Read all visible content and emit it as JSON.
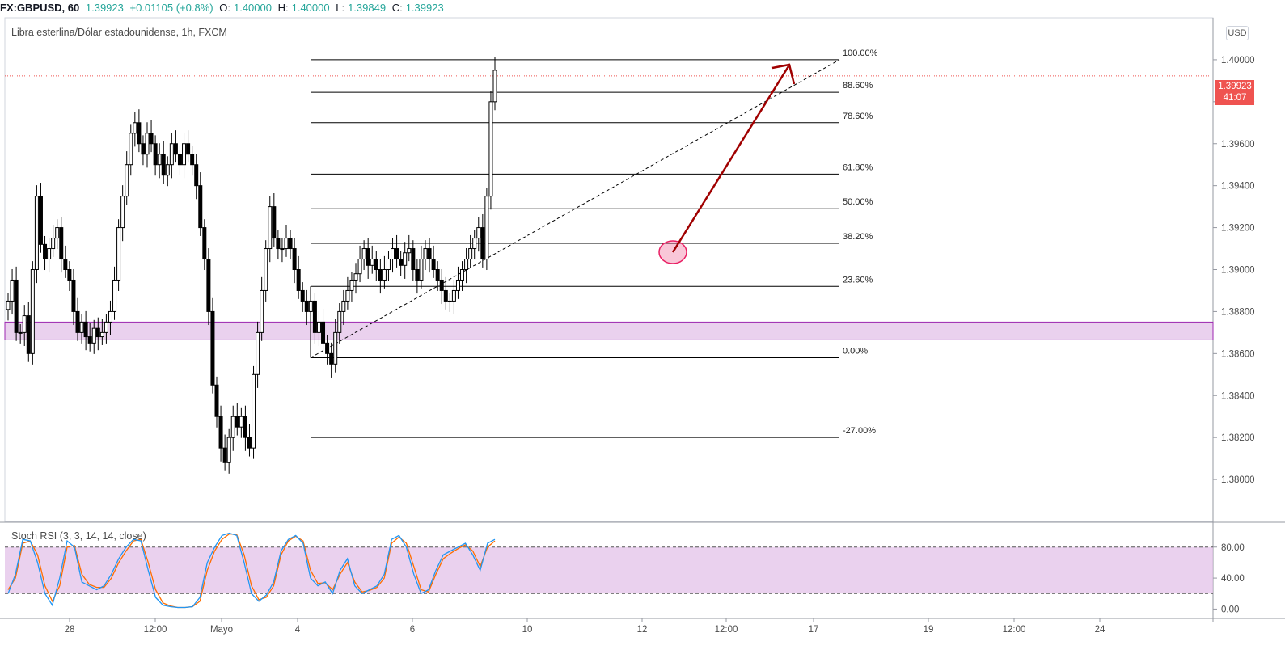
{
  "header": {
    "symbol": "FX:GBPUSD, 60",
    "last": "1.39923",
    "change": "+0.01105 (+0.8%)",
    "o_label": "O:",
    "o_val": "1.40000",
    "h_label": "H:",
    "h_val": "1.40000",
    "l_label": "L:",
    "l_val": "1.39849",
    "c_label": "C:",
    "c_val": "1.39923"
  },
  "chart_title": "Libra esterlina/Dólar estadounidense, 1h, FXCM",
  "currency": "USD",
  "price_badge": {
    "price": "1.39923",
    "countdown": "41:07"
  },
  "stoch_title": "Stoch RSI (3, 3, 14, 14, close)",
  "colors": {
    "up": "#26a69a",
    "down": "#ef5350",
    "candle": "#000000",
    "stoch_k": "#2196f3",
    "stoch_d": "#ff6d00",
    "zone": "#e1bee7",
    "arrow": "#a00000",
    "ellipse": "#e91e63"
  },
  "chart_data": [
    {
      "type": "candlestick",
      "title": "Libra esterlina/Dólar estadounidense, 1h, FXCM",
      "y_ticks": [
        "1.40000",
        "1.39800",
        "1.39600",
        "1.39400",
        "1.39200",
        "1.39000",
        "1.38800",
        "1.38600",
        "1.38400",
        "1.38200",
        "1.38000"
      ],
      "y_range": [
        1.378,
        1.402
      ],
      "x_ticks": [
        "28",
        "12:00",
        "Mayo",
        "4",
        "6",
        "10",
        "12",
        "12:00",
        "17",
        "19",
        "12:00",
        "24"
      ],
      "current_price": 1.39923,
      "fibonacci": [
        {
          "label": "100.00%",
          "price": 1.4
        },
        {
          "label": "88.60%",
          "price": 1.39845
        },
        {
          "label": "78.60%",
          "price": 1.397
        },
        {
          "label": "61.80%",
          "price": 1.39455
        },
        {
          "label": "50.00%",
          "price": 1.3929
        },
        {
          "label": "38.20%",
          "price": 1.39125
        },
        {
          "label": "23.60%",
          "price": 1.3892
        },
        {
          "label": "0.00%",
          "price": 1.3858
        },
        {
          "label": "-27.00%",
          "price": 1.382
        }
      ],
      "support_zone": [
        1.38665,
        1.3875
      ],
      "series": [
        {
          "name": "close",
          "values": [
            1.3885,
            1.3895,
            1.387,
            1.387,
            1.3878,
            1.386,
            1.39,
            1.3935,
            1.3912,
            1.3905,
            1.391,
            1.3915,
            1.392,
            1.3905,
            1.39,
            1.3895,
            1.388,
            1.387,
            1.3875,
            1.3868,
            1.3865,
            1.3872,
            1.3868,
            1.387,
            1.3875,
            1.388,
            1.3895,
            1.392,
            1.3935,
            1.395,
            1.3965,
            1.397,
            1.396,
            1.3955,
            1.3965,
            1.396,
            1.395,
            1.3955,
            1.3945,
            1.395,
            1.396,
            1.3955,
            1.395,
            1.396,
            1.3955,
            1.395,
            1.394,
            1.392,
            1.3905,
            1.388,
            1.3845,
            1.383,
            1.3815,
            1.3808,
            1.382,
            1.383,
            1.3825,
            1.383,
            1.382,
            1.3815,
            1.385,
            1.387,
            1.389,
            1.391,
            1.393,
            1.3915,
            1.391,
            1.391,
            1.3915,
            1.391,
            1.39,
            1.389,
            1.3885,
            1.388,
            1.3885,
            1.387,
            1.3875,
            1.3865,
            1.386,
            1.3855,
            1.387,
            1.388,
            1.3885,
            1.389,
            1.3895,
            1.3898,
            1.3905,
            1.391,
            1.3902,
            1.3905,
            1.39,
            1.3895,
            1.39,
            1.3905,
            1.391,
            1.3905,
            1.3902,
            1.3908,
            1.391,
            1.39,
            1.3895,
            1.3905,
            1.391,
            1.3905,
            1.39,
            1.3895,
            1.389,
            1.3885,
            1.3885,
            1.389,
            1.3895,
            1.39,
            1.3905,
            1.391,
            1.3915,
            1.392,
            1.3905,
            1.3935,
            1.398,
            1.3995
          ]
        },
        {
          "name": "stoch_k",
          "values": [
            20,
            45,
            90,
            88,
            60,
            20,
            5,
            40,
            88,
            80,
            35,
            30,
            25,
            30,
            45,
            65,
            80,
            90,
            88,
            50,
            15,
            5,
            3,
            2,
            2,
            3,
            15,
            60,
            80,
            95,
            98,
            95,
            60,
            20,
            10,
            18,
            35,
            75,
            90,
            95,
            85,
            40,
            30,
            35,
            20,
            50,
            65,
            30,
            20,
            25,
            30,
            45,
            90,
            95,
            80,
            45,
            20,
            25,
            50,
            70,
            75,
            80,
            85,
            70,
            50,
            85,
            90
          ]
        },
        {
          "name": "stoch_d",
          "values": [
            25,
            40,
            85,
            88,
            70,
            30,
            10,
            30,
            80,
            82,
            45,
            32,
            28,
            28,
            40,
            60,
            75,
            88,
            90,
            60,
            25,
            8,
            4,
            2,
            2,
            3,
            10,
            50,
            75,
            90,
            97,
            96,
            70,
            30,
            12,
            15,
            30,
            70,
            88,
            94,
            88,
            50,
            33,
            34,
            25,
            45,
            60,
            35,
            22,
            24,
            28,
            40,
            85,
            93,
            85,
            55,
            25,
            22,
            45,
            65,
            72,
            78,
            83,
            75,
            55,
            80,
            88
          ]
        }
      ]
    },
    {
      "type": "line",
      "title": "Stoch RSI (3, 3, 14, 14, close)",
      "y_ticks": [
        "80.00",
        "40.00",
        "0.00"
      ],
      "y_range": [
        -10,
        110
      ],
      "band": [
        20,
        80
      ]
    }
  ]
}
